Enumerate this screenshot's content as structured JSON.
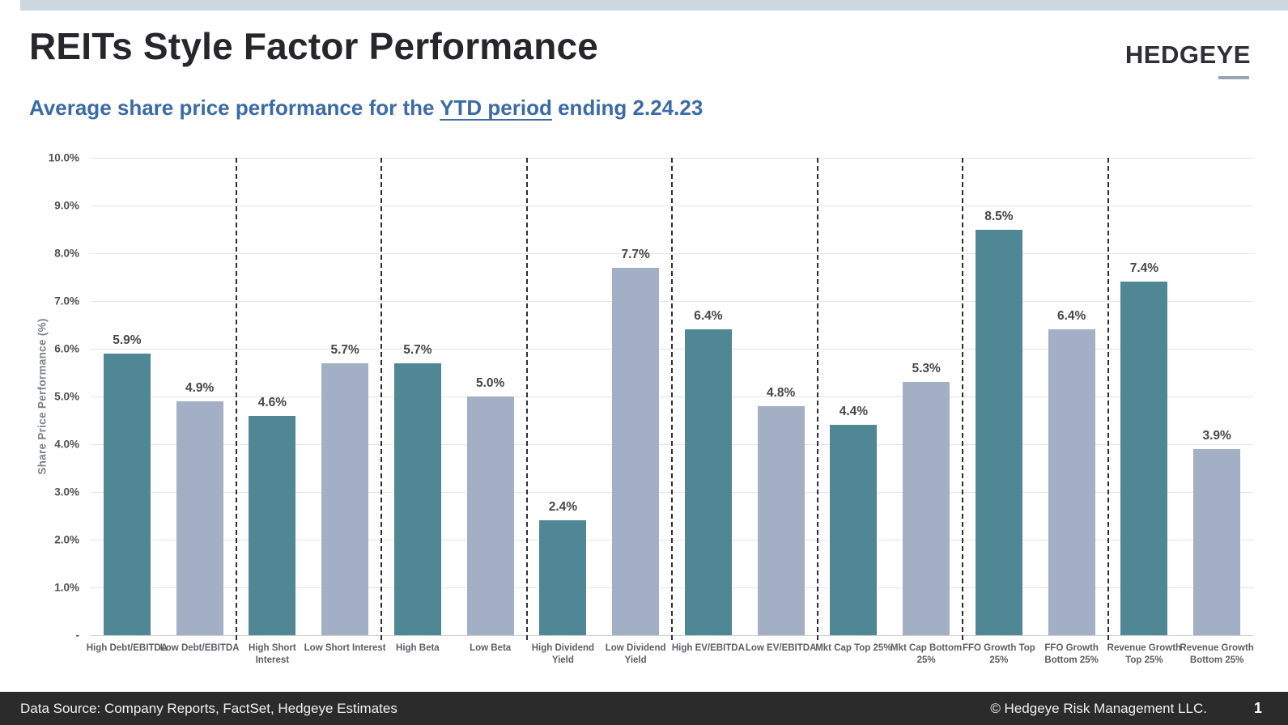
{
  "page": {
    "title": "REITs Style Factor Performance",
    "subtitle": {
      "prefix": "Average share price performance for the ",
      "underlined": "YTD period",
      "suffix": " ending 2.24.23"
    },
    "logo": "HEDGEYE",
    "footer": {
      "left": "Data Source: Company Reports, FactSet, Hedgeye Estimates",
      "right": "© Hedgeye Risk Management LLC.",
      "page_number": "1"
    }
  },
  "colors": {
    "bar_high": "#4F8794",
    "bar_low": "#A3AFC4",
    "top_strip": "#CDD7E0",
    "subtitle_blue": "#3A6BA5",
    "footer_bg": "#2B2B2B",
    "gridline": "#E3E3E3",
    "separator": "#2E2E2E",
    "logo_underline": "#97A4B2"
  },
  "chart_data": {
    "type": "bar",
    "title": "REITs Style Factor Performance",
    "subtitle": "Average share price performance for the YTD period ending 2.24.23",
    "xlabel": "",
    "ylabel": "Share Price Performance (%)",
    "ylim": [
      0,
      10
    ],
    "ytick_step": 1,
    "ytick_labels": [
      "10.0%",
      "9.0%",
      "8.0%",
      "7.0%",
      "6.0%",
      "5.0%",
      "4.0%",
      "3.0%",
      "2.0%",
      "1.0%",
      "-"
    ],
    "grid": true,
    "legend": false,
    "categories": [
      "High Debt/EBITDA",
      "Low Debt/EBITDA",
      "High Short Interest",
      "Low Short Interest",
      "High Beta",
      "Low Beta",
      "High Dividend Yield",
      "Low Dividend Yield",
      "High EV/EBITDA",
      "Low EV/EBITDA",
      "Mkt Cap Top 25%",
      "Mkt Cap Bottom 25%",
      "FFO Growth Top 25%",
      "FFO Growth Bottom 25%",
      "Revenue Growth Top 25%",
      "Revenue Growth Bottom 25%"
    ],
    "category_lines": [
      [
        "High Debt/EBITDA"
      ],
      [
        "Low Debt/EBITDA"
      ],
      [
        "High Short",
        "Interest"
      ],
      [
        "Low Short Interest"
      ],
      [
        "High Beta"
      ],
      [
        "Low Beta"
      ],
      [
        "High Dividend",
        "Yield"
      ],
      [
        "Low Dividend",
        "Yield"
      ],
      [
        "High EV/EBITDA"
      ],
      [
        "Low EV/EBITDA"
      ],
      [
        "Mkt Cap Top 25%"
      ],
      [
        "Mkt Cap Bottom",
        "25%"
      ],
      [
        "FFO Growth Top",
        "25%"
      ],
      [
        "FFO Growth",
        "Bottom 25%"
      ],
      [
        "Revenue Growth",
        "Top 25%"
      ],
      [
        "Revenue Growth",
        "Bottom 25%"
      ]
    ],
    "values": [
      5.9,
      4.9,
      4.6,
      5.7,
      5.7,
      5.0,
      2.4,
      7.7,
      6.4,
      4.8,
      4.4,
      5.3,
      8.5,
      6.4,
      7.4,
      3.9
    ],
    "value_labels": [
      "5.9%",
      "4.9%",
      "4.6%",
      "5.7%",
      "5.7%",
      "5.0%",
      "2.4%",
      "7.7%",
      "6.4%",
      "4.8%",
      "4.4%",
      "5.3%",
      "8.5%",
      "6.4%",
      "7.4%",
      "3.9%"
    ],
    "bar_colors_alternate": [
      "#4F8794",
      "#A3AFC4"
    ],
    "pair_separators": "dashed vertical line after every 2 bars"
  }
}
